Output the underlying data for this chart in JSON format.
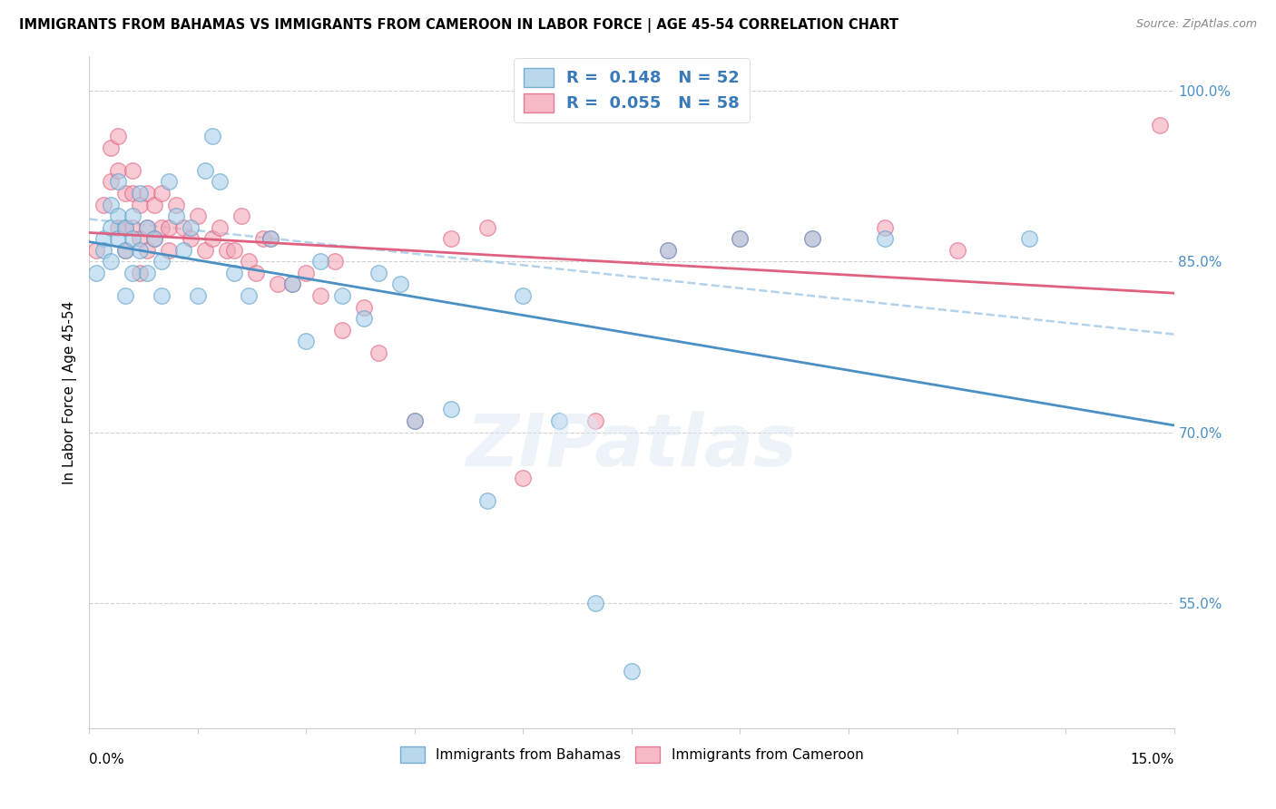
{
  "title": "IMMIGRANTS FROM BAHAMAS VS IMMIGRANTS FROM CAMEROON IN LABOR FORCE | AGE 45-54 CORRELATION CHART",
  "source": "Source: ZipAtlas.com",
  "ylabel": "In Labor Force | Age 45-54",
  "xlim": [
    0.0,
    0.15
  ],
  "ylim": [
    0.44,
    1.03
  ],
  "legend1_r": "0.148",
  "legend1_n": "52",
  "legend2_r": "0.055",
  "legend2_n": "58",
  "color_blue": "#a8cfe8",
  "color_pink": "#f4a8b8",
  "edge_blue": "#5b9ec9",
  "edge_pink": "#e06080",
  "line_blue": "#4a90c4",
  "line_pink": "#e06080",
  "line_blue_dash": "#a0c8e8",
  "bahamas_x": [
    0.001,
    0.002,
    0.002,
    0.003,
    0.003,
    0.003,
    0.004,
    0.004,
    0.004,
    0.005,
    0.005,
    0.005,
    0.006,
    0.006,
    0.006,
    0.007,
    0.007,
    0.008,
    0.008,
    0.009,
    0.01,
    0.01,
    0.011,
    0.012,
    0.013,
    0.014,
    0.015,
    0.016,
    0.017,
    0.018,
    0.02,
    0.022,
    0.025,
    0.028,
    0.03,
    0.032,
    0.035,
    0.038,
    0.04,
    0.043,
    0.045,
    0.05,
    0.055,
    0.06,
    0.065,
    0.07,
    0.075,
    0.08,
    0.09,
    0.1,
    0.11,
    0.13
  ],
  "bahamas_y": [
    0.84,
    0.87,
    0.86,
    0.88,
    0.9,
    0.85,
    0.92,
    0.87,
    0.89,
    0.86,
    0.82,
    0.88,
    0.87,
    0.89,
    0.84,
    0.91,
    0.86,
    0.88,
    0.84,
    0.87,
    0.85,
    0.82,
    0.92,
    0.89,
    0.86,
    0.88,
    0.82,
    0.93,
    0.96,
    0.92,
    0.84,
    0.82,
    0.87,
    0.83,
    0.78,
    0.85,
    0.82,
    0.8,
    0.84,
    0.83,
    0.71,
    0.72,
    0.64,
    0.82,
    0.71,
    0.55,
    0.49,
    0.86,
    0.87,
    0.87,
    0.87,
    0.87
  ],
  "cameroon_x": [
    0.001,
    0.002,
    0.003,
    0.003,
    0.004,
    0.004,
    0.004,
    0.005,
    0.005,
    0.005,
    0.006,
    0.006,
    0.006,
    0.007,
    0.007,
    0.007,
    0.008,
    0.008,
    0.008,
    0.009,
    0.009,
    0.01,
    0.01,
    0.011,
    0.011,
    0.012,
    0.013,
    0.014,
    0.015,
    0.016,
    0.017,
    0.018,
    0.019,
    0.02,
    0.021,
    0.022,
    0.023,
    0.024,
    0.025,
    0.026,
    0.028,
    0.03,
    0.032,
    0.034,
    0.035,
    0.038,
    0.04,
    0.045,
    0.05,
    0.055,
    0.06,
    0.07,
    0.08,
    0.09,
    0.1,
    0.11,
    0.12,
    0.148
  ],
  "cameroon_y": [
    0.86,
    0.9,
    0.95,
    0.92,
    0.93,
    0.96,
    0.88,
    0.91,
    0.88,
    0.86,
    0.93,
    0.91,
    0.88,
    0.9,
    0.87,
    0.84,
    0.91,
    0.88,
    0.86,
    0.9,
    0.87,
    0.91,
    0.88,
    0.88,
    0.86,
    0.9,
    0.88,
    0.87,
    0.89,
    0.86,
    0.87,
    0.88,
    0.86,
    0.86,
    0.89,
    0.85,
    0.84,
    0.87,
    0.87,
    0.83,
    0.83,
    0.84,
    0.82,
    0.85,
    0.79,
    0.81,
    0.77,
    0.71,
    0.87,
    0.88,
    0.66,
    0.71,
    0.86,
    0.87,
    0.87,
    0.88,
    0.86,
    0.97
  ]
}
